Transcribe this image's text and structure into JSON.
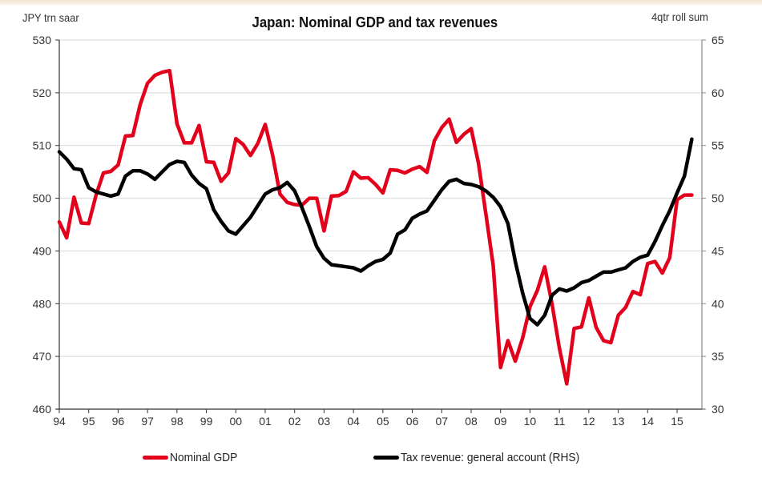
{
  "chart_data": {
    "type": "line",
    "title": "Japan: Nominal GDP and tax revenues",
    "ylabel_left": "JPY trn saar",
    "ylabel_right": "4qtr roll sum",
    "xlabel": "",
    "ylim_left": [
      460,
      530
    ],
    "ylim_right": [
      30,
      65
    ],
    "yticks_left": [
      460,
      470,
      480,
      490,
      500,
      510,
      520,
      530
    ],
    "yticks_right": [
      30,
      35,
      40,
      45,
      50,
      55,
      60,
      65
    ],
    "xtick_labels": [
      "94",
      "95",
      "96",
      "97",
      "98",
      "99",
      "00",
      "01",
      "02",
      "03",
      "04",
      "05",
      "06",
      "07",
      "08",
      "09",
      "10",
      "11",
      "12",
      "13",
      "14",
      "15"
    ],
    "x_start": "1994Q1",
    "frequency": "quarterly",
    "grid": "horizontal",
    "legend_position": "bottom",
    "series": [
      {
        "name": "Nominal GDP",
        "axis": "left",
        "color": "#e3001b",
        "values": [
          495.5,
          492.5,
          500.2,
          495.3,
          495.2,
          500.6,
          504.8,
          505.1,
          506.3,
          511.8,
          511.9,
          517.8,
          521.8,
          523.3,
          523.9,
          524.2,
          514.1,
          510.5,
          510.5,
          513.8,
          506.9,
          506.8,
          503.2,
          504.8,
          511.3,
          510.2,
          508.1,
          510.4,
          514.0,
          508.2,
          500.8,
          499.2,
          498.8,
          498.7,
          500.0,
          500.0,
          493.8,
          500.4,
          500.5,
          501.3,
          505.0,
          503.8,
          503.9,
          502.6,
          501.0,
          505.4,
          505.3,
          504.8,
          505.5,
          506.0,
          504.9,
          510.9,
          513.4,
          515.0,
          510.6,
          512.1,
          513.2,
          506.6,
          497.0,
          487.3,
          467.9,
          473.0,
          469.1,
          473.5,
          479.4,
          482.5,
          487.0,
          479.9,
          471.6,
          464.8,
          475.3,
          475.6,
          481.1,
          475.5,
          473.0,
          472.6,
          477.8,
          479.3,
          482.3,
          481.7,
          487.6,
          488.0,
          485.8,
          488.7,
          499.7,
          500.6,
          500.6
        ]
      },
      {
        "name": "Tax revenue: general account (RHS)",
        "axis": "right",
        "color": "#000000",
        "values": [
          54.4,
          53.7,
          52.8,
          52.7,
          51.0,
          50.6,
          50.4,
          50.2,
          50.4,
          52.1,
          52.6,
          52.6,
          52.3,
          51.8,
          52.5,
          53.2,
          53.5,
          53.4,
          52.2,
          51.4,
          50.9,
          48.9,
          47.8,
          46.9,
          46.6,
          47.4,
          48.2,
          49.3,
          50.4,
          50.8,
          51.0,
          51.5,
          50.7,
          49.1,
          47.3,
          45.4,
          44.3,
          43.7,
          43.6,
          43.5,
          43.4,
          43.1,
          43.6,
          44.0,
          44.2,
          44.8,
          46.6,
          47.0,
          48.1,
          48.5,
          48.8,
          49.8,
          50.8,
          51.6,
          51.8,
          51.4,
          51.3,
          51.1,
          50.7,
          50.1,
          49.2,
          47.6,
          44.0,
          41.0,
          38.6,
          38.0,
          38.9,
          40.8,
          41.4,
          41.2,
          41.5,
          42.0,
          42.2,
          42.6,
          43.0,
          43.0,
          43.2,
          43.4,
          44.0,
          44.4,
          44.6,
          45.9,
          47.4,
          48.8,
          50.5,
          52.1,
          55.6
        ]
      }
    ]
  }
}
